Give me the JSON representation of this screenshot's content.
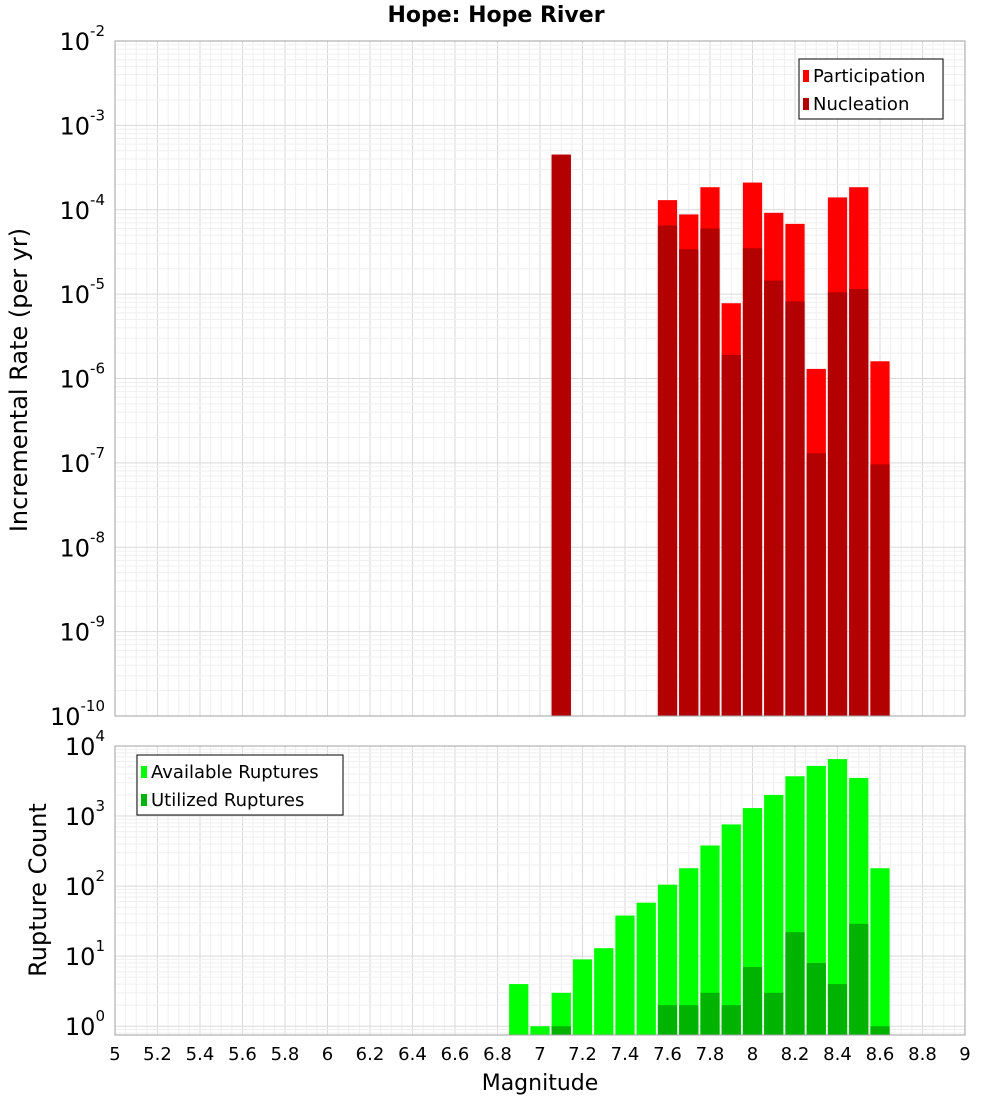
{
  "chart_data": [
    {
      "type": "bar",
      "title": "Hope: Hope River",
      "xlabel": "",
      "ylabel": "Incremental Rate (per yr)",
      "yscale": "log",
      "ylim": [
        1e-10,
        0.01
      ],
      "xlim": [
        5,
        9
      ],
      "grid": true,
      "legend_position": "top-right",
      "y_ticks": [
        {
          "base": "10",
          "exp": "-10"
        },
        {
          "base": "10",
          "exp": "-9"
        },
        {
          "base": "10",
          "exp": "-8"
        },
        {
          "base": "10",
          "exp": "-7"
        },
        {
          "base": "10",
          "exp": "-6"
        },
        {
          "base": "10",
          "exp": "-5"
        },
        {
          "base": "10",
          "exp": "-4"
        },
        {
          "base": "10",
          "exp": "-3"
        },
        {
          "base": "10",
          "exp": "-2"
        }
      ],
      "x": [
        7.1,
        7.6,
        7.7,
        7.8,
        7.9,
        8.0,
        8.1,
        8.2,
        8.3,
        8.4,
        8.5,
        8.6
      ],
      "series": [
        {
          "name": "Participation",
          "color": "#ff0000",
          "values": [
            0.00045,
            0.00013,
            8.8e-05,
            0.000185,
            7.8e-06,
            0.00021,
            9.2e-05,
            6.8e-05,
            1.3e-06,
            0.00014,
            0.000185,
            1.6e-06
          ]
        },
        {
          "name": "Nucleation",
          "color": "#b30000",
          "values": [
            0.00045,
            6.5e-05,
            3.4e-05,
            6e-05,
            1.9e-06,
            3.5e-05,
            1.45e-05,
            8.2e-06,
            1.3e-07,
            1.05e-05,
            1.15e-05,
            9.6e-08
          ]
        }
      ]
    },
    {
      "type": "bar",
      "title": "",
      "xlabel": "Magnitude",
      "ylabel": "Rupture Count",
      "yscale": "log",
      "ylim": [
        0.75,
        10000
      ],
      "xlim": [
        5,
        9
      ],
      "grid": true,
      "legend_position": "top-left",
      "y_ticks": [
        {
          "base": "10",
          "exp": "0"
        },
        {
          "base": "10",
          "exp": "1"
        },
        {
          "base": "10",
          "exp": "2"
        },
        {
          "base": "10",
          "exp": "3"
        },
        {
          "base": "10",
          "exp": "4"
        }
      ],
      "x_tick_labels": [
        "5",
        "5.2",
        "5.4",
        "5.6",
        "5.8",
        "6",
        "6.2",
        "6.4",
        "6.6",
        "6.8",
        "7",
        "7.2",
        "7.4",
        "7.6",
        "7.8",
        "8",
        "8.2",
        "8.4",
        "8.6",
        "8.8",
        "9"
      ],
      "x": [
        6.9,
        7.0,
        7.1,
        7.2,
        7.3,
        7.4,
        7.5,
        7.6,
        7.7,
        7.8,
        7.9,
        8.0,
        8.1,
        8.2,
        8.3,
        8.4,
        8.5,
        8.6
      ],
      "series": [
        {
          "name": "Available Ruptures",
          "color": "#00ff00",
          "values": [
            4,
            1,
            3,
            9,
            13,
            38,
            58,
            105,
            180,
            380,
            760,
            1300,
            2000,
            3700,
            5200,
            6500,
            3500,
            180
          ]
        },
        {
          "name": "Utilized Ruptures",
          "color": "#00b300",
          "values": [
            0,
            0,
            1,
            0,
            0,
            0,
            0,
            2,
            2,
            3,
            2,
            7,
            3,
            22,
            8,
            4,
            29,
            1
          ]
        }
      ]
    }
  ]
}
